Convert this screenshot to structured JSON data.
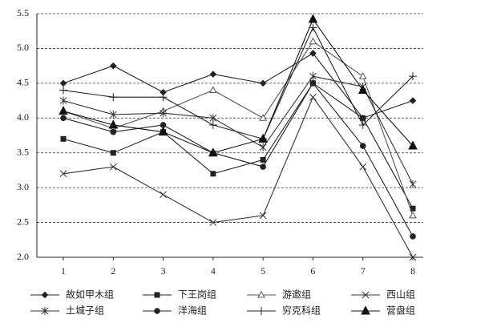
{
  "chart_data": {
    "type": "line",
    "categories": [
      "1",
      "2",
      "3",
      "4",
      "5",
      "6",
      "7",
      "8"
    ],
    "ylim": [
      2.0,
      5.5
    ],
    "yticks": [
      {
        "value": 2.0,
        "label": "2.0"
      },
      {
        "value": 2.5,
        "label": "2.5"
      },
      {
        "value": 3.0,
        "label": "3.0"
      },
      {
        "value": 3.5,
        "label": "3.5"
      },
      {
        "value": 4.0,
        "label": "4.0"
      },
      {
        "value": 4.5,
        "label": "4.5"
      },
      {
        "value": 5.0,
        "label": "5.0"
      },
      {
        "value": 5.5,
        "label": "5.5"
      }
    ],
    "grid": true,
    "legend": "bottom",
    "series": [
      {
        "name": "故如甲木组",
        "color": "#222",
        "marker": "diamond",
        "values": [
          4.5,
          4.75,
          4.37,
          4.63,
          4.5,
          4.93,
          4.0,
          4.25
        ]
      },
      {
        "name": "下王岗组",
        "color": "#222",
        "marker": "square",
        "values": [
          3.7,
          3.5,
          3.8,
          3.2,
          3.4,
          4.5,
          4.0,
          2.7
        ]
      },
      {
        "name": "游邀组",
        "color": "#555",
        "marker": "triangle-open",
        "values": [
          4.1,
          3.85,
          4.1,
          4.4,
          4.0,
          5.1,
          4.6,
          2.6
        ]
      },
      {
        "name": "西山组",
        "color": "#333",
        "marker": "x",
        "values": [
          3.2,
          3.3,
          2.9,
          2.5,
          2.6,
          4.3,
          3.3,
          2.0
        ]
      },
      {
        "name": "土城子组",
        "color": "#333",
        "marker": "asterisk",
        "values": [
          4.25,
          4.05,
          4.07,
          4.0,
          3.58,
          4.6,
          4.45,
          3.05
        ]
      },
      {
        "name": "洋海组",
        "color": "#222",
        "marker": "circle",
        "values": [
          4.0,
          3.8,
          3.9,
          3.5,
          3.3,
          4.5,
          3.6,
          2.3
        ]
      },
      {
        "name": "穷克科组",
        "color": "#222",
        "marker": "plus",
        "values": [
          4.4,
          4.3,
          4.3,
          3.9,
          3.7,
          5.3,
          3.9,
          4.6
        ]
      },
      {
        "name": "营盘组",
        "color": "#111",
        "marker": "triangle",
        "values": [
          4.1,
          3.9,
          3.8,
          3.5,
          3.7,
          5.42,
          4.4,
          3.6
        ]
      }
    ]
  }
}
